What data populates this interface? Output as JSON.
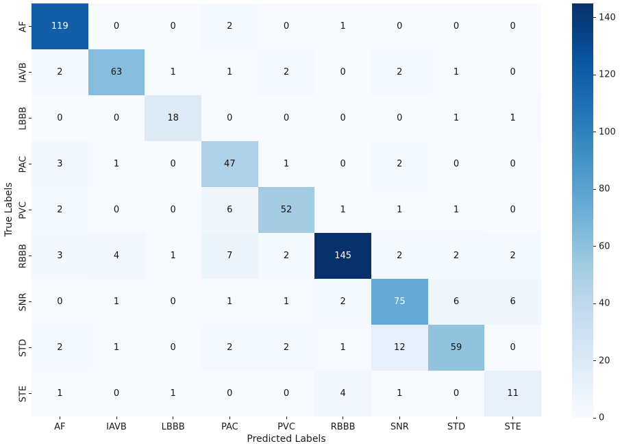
{
  "chart_data": {
    "type": "heatmap",
    "title": "",
    "xlabel": "Predicted Labels",
    "ylabel": "True Labels",
    "x_categories": [
      "AF",
      "IAVB",
      "LBBB",
      "PAC",
      "PVC",
      "RBBB",
      "SNR",
      "STD",
      "STE"
    ],
    "y_categories": [
      "AF",
      "IAVB",
      "LBBB",
      "PAC",
      "PVC",
      "RBBB",
      "SNR",
      "STD",
      "STE"
    ],
    "matrix": [
      [
        119,
        0,
        0,
        2,
        0,
        1,
        0,
        0,
        0
      ],
      [
        2,
        63,
        1,
        1,
        2,
        0,
        2,
        1,
        0
      ],
      [
        0,
        0,
        18,
        0,
        0,
        0,
        0,
        1,
        1
      ],
      [
        3,
        1,
        0,
        47,
        1,
        0,
        2,
        0,
        0
      ],
      [
        2,
        0,
        0,
        6,
        52,
        1,
        1,
        1,
        0
      ],
      [
        3,
        4,
        1,
        7,
        2,
        145,
        2,
        2,
        2
      ],
      [
        0,
        1,
        0,
        1,
        1,
        2,
        75,
        6,
        6
      ],
      [
        2,
        1,
        0,
        2,
        2,
        1,
        12,
        59,
        0
      ],
      [
        1,
        0,
        1,
        0,
        0,
        4,
        1,
        0,
        11
      ]
    ],
    "vmin": 0,
    "vmax": 145,
    "colormap": "Blues",
    "colormap_stops": [
      "#f7fbff",
      "#deebf7",
      "#c6dbef",
      "#9ecae1",
      "#6baed6",
      "#4292c6",
      "#2171b5",
      "#08519c",
      "#08306b"
    ],
    "colorbar_ticks": [
      0,
      20,
      40,
      60,
      80,
      100,
      120,
      140
    ],
    "annotation_color_dark_cell": "#ffffff",
    "annotation_color_light_cell": "#111111",
    "legend_position": "right",
    "grid": false
  }
}
